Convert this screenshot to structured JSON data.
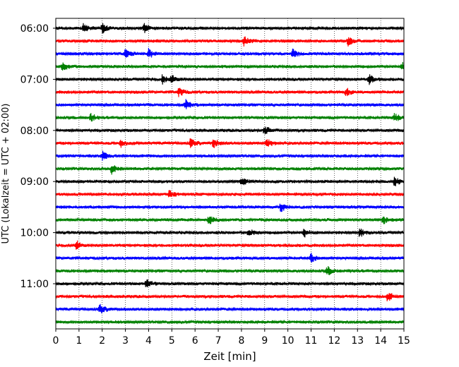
{
  "chart_data": {
    "type": "line",
    "chart_kind": "seismic helicorder (stacked traces)",
    "xlabel": "Zeit  [min]",
    "ylabel": "UTC (Lokalzeit = UTC + 02:00)",
    "xlim": [
      0,
      15
    ],
    "x_ticks": [
      "0",
      "1",
      "2",
      "3",
      "4",
      "5",
      "6",
      "7",
      "8",
      "9",
      "10",
      "11",
      "12",
      "13",
      "14",
      "15"
    ],
    "y_ticks": [
      "06:00",
      "07:00",
      "08:00",
      "09:00",
      "10:00",
      "11:00"
    ],
    "vertical_grid": "dotted, every minute",
    "trace_colors": [
      "#000000",
      "#ff0000",
      "#0000ff",
      "#008000"
    ],
    "traces": [
      {
        "start": "06:00",
        "color": "#000000",
        "events_min": [
          1.2,
          2.0,
          3.8
        ]
      },
      {
        "start": "06:15",
        "color": "#ff0000",
        "events_min": [
          8.1,
          12.6
        ]
      },
      {
        "start": "06:30",
        "color": "#0000ff",
        "events_min": [
          3.0,
          4.0,
          10.2
        ]
      },
      {
        "start": "06:45",
        "color": "#008000",
        "events_min": [
          0.3,
          14.9
        ]
      },
      {
        "start": "07:00",
        "color": "#000000",
        "events_min": [
          4.6,
          5.0,
          13.5
        ]
      },
      {
        "start": "07:15",
        "color": "#ff0000",
        "events_min": [
          5.3,
          12.5
        ]
      },
      {
        "start": "07:30",
        "color": "#0000ff",
        "events_min": [
          5.6
        ]
      },
      {
        "start": "07:45",
        "color": "#008000",
        "events_min": [
          1.5,
          14.6
        ]
      },
      {
        "start": "08:00",
        "color": "#000000",
        "events_min": [
          9.0
        ]
      },
      {
        "start": "08:15",
        "color": "#ff0000",
        "events_min": [
          2.8,
          5.8,
          6.8,
          9.1
        ]
      },
      {
        "start": "08:30",
        "color": "#0000ff",
        "events_min": [
          2.0
        ]
      },
      {
        "start": "08:45",
        "color": "#008000",
        "events_min": [
          2.4
        ]
      },
      {
        "start": "09:00",
        "color": "#000000",
        "events_min": [
          8.0,
          14.6
        ]
      },
      {
        "start": "09:15",
        "color": "#ff0000",
        "events_min": [
          4.9
        ]
      },
      {
        "start": "09:30",
        "color": "#0000ff",
        "events_min": [
          9.7
        ]
      },
      {
        "start": "09:45",
        "color": "#008000",
        "events_min": [
          6.6,
          14.1
        ]
      },
      {
        "start": "10:00",
        "color": "#000000",
        "events_min": [
          8.3,
          10.7,
          13.1
        ]
      },
      {
        "start": "10:15",
        "color": "#ff0000",
        "events_min": [
          0.9
        ]
      },
      {
        "start": "10:30",
        "color": "#0000ff",
        "events_min": [
          11.0
        ]
      },
      {
        "start": "10:45",
        "color": "#008000",
        "events_min": [
          11.7
        ]
      },
      {
        "start": "11:00",
        "color": "#000000",
        "events_min": [
          3.9
        ]
      },
      {
        "start": "11:15",
        "color": "#ff0000",
        "events_min": [
          14.3
        ]
      },
      {
        "start": "11:30",
        "color": "#0000ff",
        "events_min": [
          1.9
        ]
      },
      {
        "start": "11:45",
        "color": "#008000",
        "events_min": []
      }
    ]
  }
}
